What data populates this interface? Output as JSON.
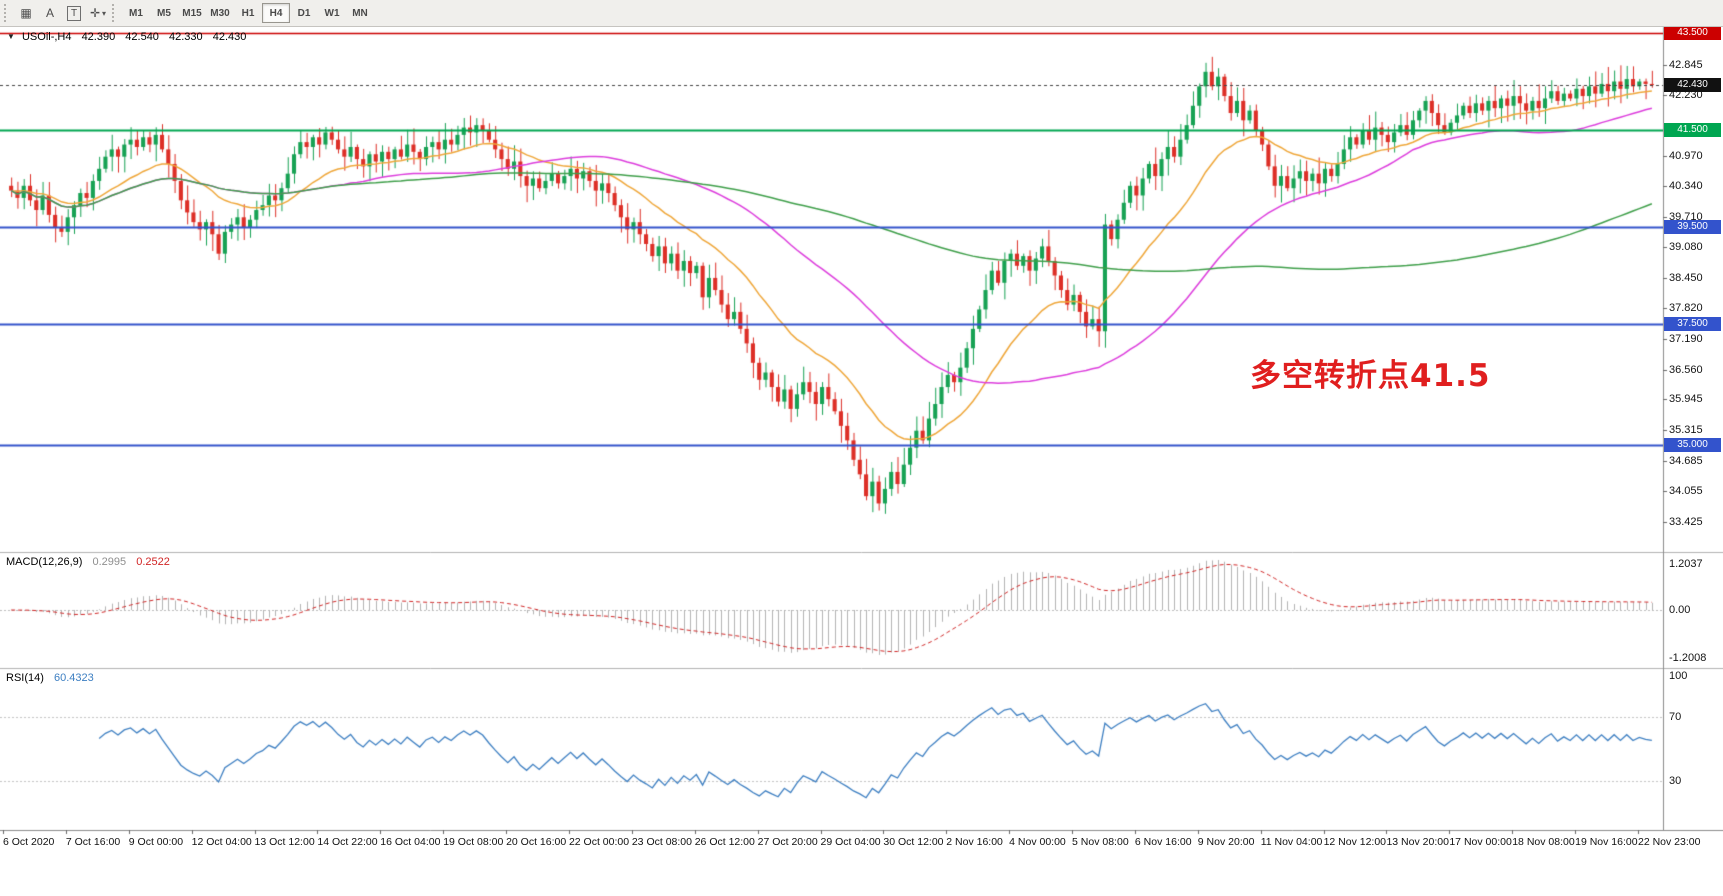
{
  "toolbar": {
    "icons": [
      {
        "name": "windows-grid-icon",
        "glyph": "▦"
      },
      {
        "name": "font-a-icon",
        "glyph": "A"
      },
      {
        "name": "text-tool-icon",
        "glyph": "T"
      },
      {
        "name": "crosshair-tool-icon",
        "glyph": "✛"
      },
      {
        "name": "dropdown-caret-icon",
        "glyph": "▾"
      }
    ],
    "timeframes": [
      {
        "label": "M1",
        "active": false
      },
      {
        "label": "M5",
        "active": false
      },
      {
        "label": "M15",
        "active": false
      },
      {
        "label": "M30",
        "active": false
      },
      {
        "label": "H1",
        "active": false
      },
      {
        "label": "H4",
        "active": true
      },
      {
        "label": "D1",
        "active": false
      },
      {
        "label": "W1",
        "active": false
      },
      {
        "label": "MN",
        "active": false
      }
    ]
  },
  "price_panel": {
    "header": {
      "dropdown_glyph": "▼",
      "symbol_period": "USOil-,H4",
      "open": "42.390",
      "high": "42.540",
      "low": "42.330",
      "close": "42.430"
    },
    "annotation": {
      "text": "多空转折点41.5",
      "color": "#e01f1f"
    },
    "axis_ticks": [
      "42.845",
      "42.230",
      "40.970",
      "40.340",
      "39.710",
      "39.080",
      "38.450",
      "37.820",
      "37.190",
      "36.560",
      "35.945",
      "35.315",
      "34.685",
      "34.055",
      "33.425"
    ],
    "levels": [
      {
        "price": 43.5,
        "label": "43.500",
        "color": "#cc0000",
        "width": 1.6
      },
      {
        "price": 41.5,
        "label": "41.500",
        "color": "#00a651",
        "width": 2
      },
      {
        "price": 39.5,
        "label": "39.500",
        "color": "#3353cc",
        "width": 2
      },
      {
        "price": 37.5,
        "label": "37.500",
        "color": "#3353cc",
        "width": 2
      },
      {
        "price": 35.0,
        "label": "35.000",
        "color": "#3353cc",
        "width": 2
      }
    ],
    "last_price": {
      "value": 42.43,
      "label": "42.430",
      "badge_color": "#111111"
    }
  },
  "macd_panel": {
    "label": "MACD(12,26,9)",
    "value_main": "0.2995",
    "value_signal": "0.2522",
    "params": {
      "fast": 12,
      "slow": 26,
      "signal": 9
    },
    "axis_labels": {
      "top": "1.2037",
      "zero": "0.00",
      "bottom": "-1.2008"
    },
    "colors": {
      "histogram": "#b3b3b3",
      "signal": "#d12626"
    }
  },
  "rsi_panel": {
    "label": "RSI(14)",
    "value": "60.4323",
    "period": 14,
    "levels": [
      70,
      30
    ],
    "axis_labels": {
      "top": "100",
      "upper": "70",
      "lower": "30"
    },
    "color": "#3d7fc2"
  },
  "chart_data": {
    "type": "candlestick",
    "symbol": "USOil",
    "timeframe": "H4",
    "up_color": "#17a254",
    "down_color": "#dd2f27",
    "open_first": 40.35,
    "closes": [
      40.25,
      40.1,
      40.35,
      40.05,
      39.85,
      40.15,
      39.75,
      39.5,
      39.4,
      39.7,
      39.95,
      40.2,
      40.1,
      40.45,
      40.7,
      40.95,
      41.1,
      40.95,
      41.2,
      41.3,
      41.15,
      41.35,
      41.2,
      41.4,
      41.1,
      40.8,
      40.45,
      40.05,
      39.8,
      39.6,
      39.45,
      39.6,
      39.35,
      38.95,
      39.4,
      39.55,
      39.7,
      39.5,
      39.65,
      39.85,
      39.95,
      40.15,
      40.05,
      40.3,
      40.6,
      41.0,
      41.25,
      41.15,
      41.35,
      41.2,
      41.45,
      41.3,
      41.1,
      40.95,
      41.15,
      40.9,
      40.75,
      41.0,
      40.85,
      41.05,
      40.9,
      41.1,
      40.95,
      41.2,
      41.05,
      40.9,
      41.15,
      41.25,
      41.1,
      41.3,
      41.2,
      41.4,
      41.55,
      41.45,
      41.6,
      41.5,
      41.3,
      41.1,
      40.9,
      40.7,
      40.85,
      40.55,
      40.35,
      40.5,
      40.3,
      40.45,
      40.6,
      40.4,
      40.55,
      40.7,
      40.5,
      40.65,
      40.45,
      40.25,
      40.4,
      40.2,
      39.95,
      39.7,
      39.45,
      39.6,
      39.35,
      39.15,
      38.9,
      39.1,
      38.75,
      38.95,
      38.6,
      38.8,
      38.55,
      38.7,
      38.05,
      38.45,
      38.2,
      37.9,
      37.6,
      37.75,
      37.4,
      37.1,
      36.7,
      36.35,
      36.5,
      36.2,
      35.9,
      36.15,
      35.75,
      36.05,
      36.3,
      36.1,
      35.85,
      36.2,
      35.95,
      35.7,
      35.4,
      35.1,
      34.7,
      34.4,
      33.95,
      34.25,
      33.8,
      34.1,
      34.45,
      34.2,
      34.6,
      34.95,
      35.3,
      35.1,
      35.55,
      35.85,
      36.2,
      36.45,
      36.3,
      36.6,
      37.0,
      37.4,
      37.8,
      38.2,
      38.6,
      38.35,
      38.8,
      38.95,
      38.7,
      38.9,
      38.6,
      38.85,
      39.1,
      38.8,
      38.5,
      38.2,
      37.9,
      38.1,
      37.75,
      37.45,
      37.6,
      37.35,
      39.55,
      39.25,
      39.65,
      40.0,
      40.35,
      40.15,
      40.5,
      40.8,
      40.55,
      40.9,
      41.15,
      40.95,
      41.3,
      41.6,
      42.0,
      42.4,
      42.7,
      42.4,
      42.6,
      42.2,
      41.85,
      42.1,
      41.7,
      41.9,
      41.5,
      41.2,
      40.75,
      40.35,
      40.55,
      40.3,
      40.5,
      40.65,
      40.45,
      40.6,
      40.4,
      40.7,
      40.55,
      40.8,
      41.1,
      41.35,
      41.2,
      41.5,
      41.3,
      41.55,
      41.4,
      41.25,
      41.45,
      41.6,
      41.4,
      41.7,
      41.9,
      42.1,
      41.85,
      41.6,
      41.45,
      41.65,
      41.8,
      42.0,
      41.85,
      42.05,
      41.9,
      42.1,
      41.95,
      42.15,
      42.0,
      42.2,
      42.05,
      41.9,
      42.1,
      41.95,
      42.15,
      42.3,
      42.1,
      42.25,
      42.15,
      42.35,
      42.2,
      42.4,
      42.25,
      42.45,
      42.3,
      42.5,
      42.35,
      42.55,
      42.4,
      42.5,
      42.45,
      42.43
    ],
    "moving_averages": [
      {
        "type": "ema",
        "period": 20,
        "color": "#efa73a"
      },
      {
        "type": "sma",
        "period": 50,
        "color": "#dd3ddd"
      },
      {
        "type": "sma",
        "period": 130,
        "color": "#3f9f4a"
      }
    ],
    "time_labels": [
      "6 Oct 2020",
      "7 Oct 16:00",
      "9 Oct 00:00",
      "12 Oct 04:00",
      "13 Oct 12:00",
      "14 Oct 22:00",
      "16 Oct 04:00",
      "19 Oct 08:00",
      "20 Oct 16:00",
      "22 Oct 00:00",
      "23 Oct 08:00",
      "26 Oct 12:00",
      "27 Oct 20:00",
      "29 Oct 04:00",
      "30 Oct 12:00",
      "2 Nov 16:00",
      "4 Nov 00:00",
      "5 Nov 08:00",
      "6 Nov 16:00",
      "9 Nov 20:00",
      "11 Nov 04:00",
      "12 Nov 12:00",
      "13 Nov 20:00",
      "17 Nov 00:00",
      "18 Nov 08:00",
      "19 Nov 16:00",
      "22 Nov 23:00"
    ],
    "y_axis": {
      "min": 33.27,
      "max": 43.6
    }
  }
}
